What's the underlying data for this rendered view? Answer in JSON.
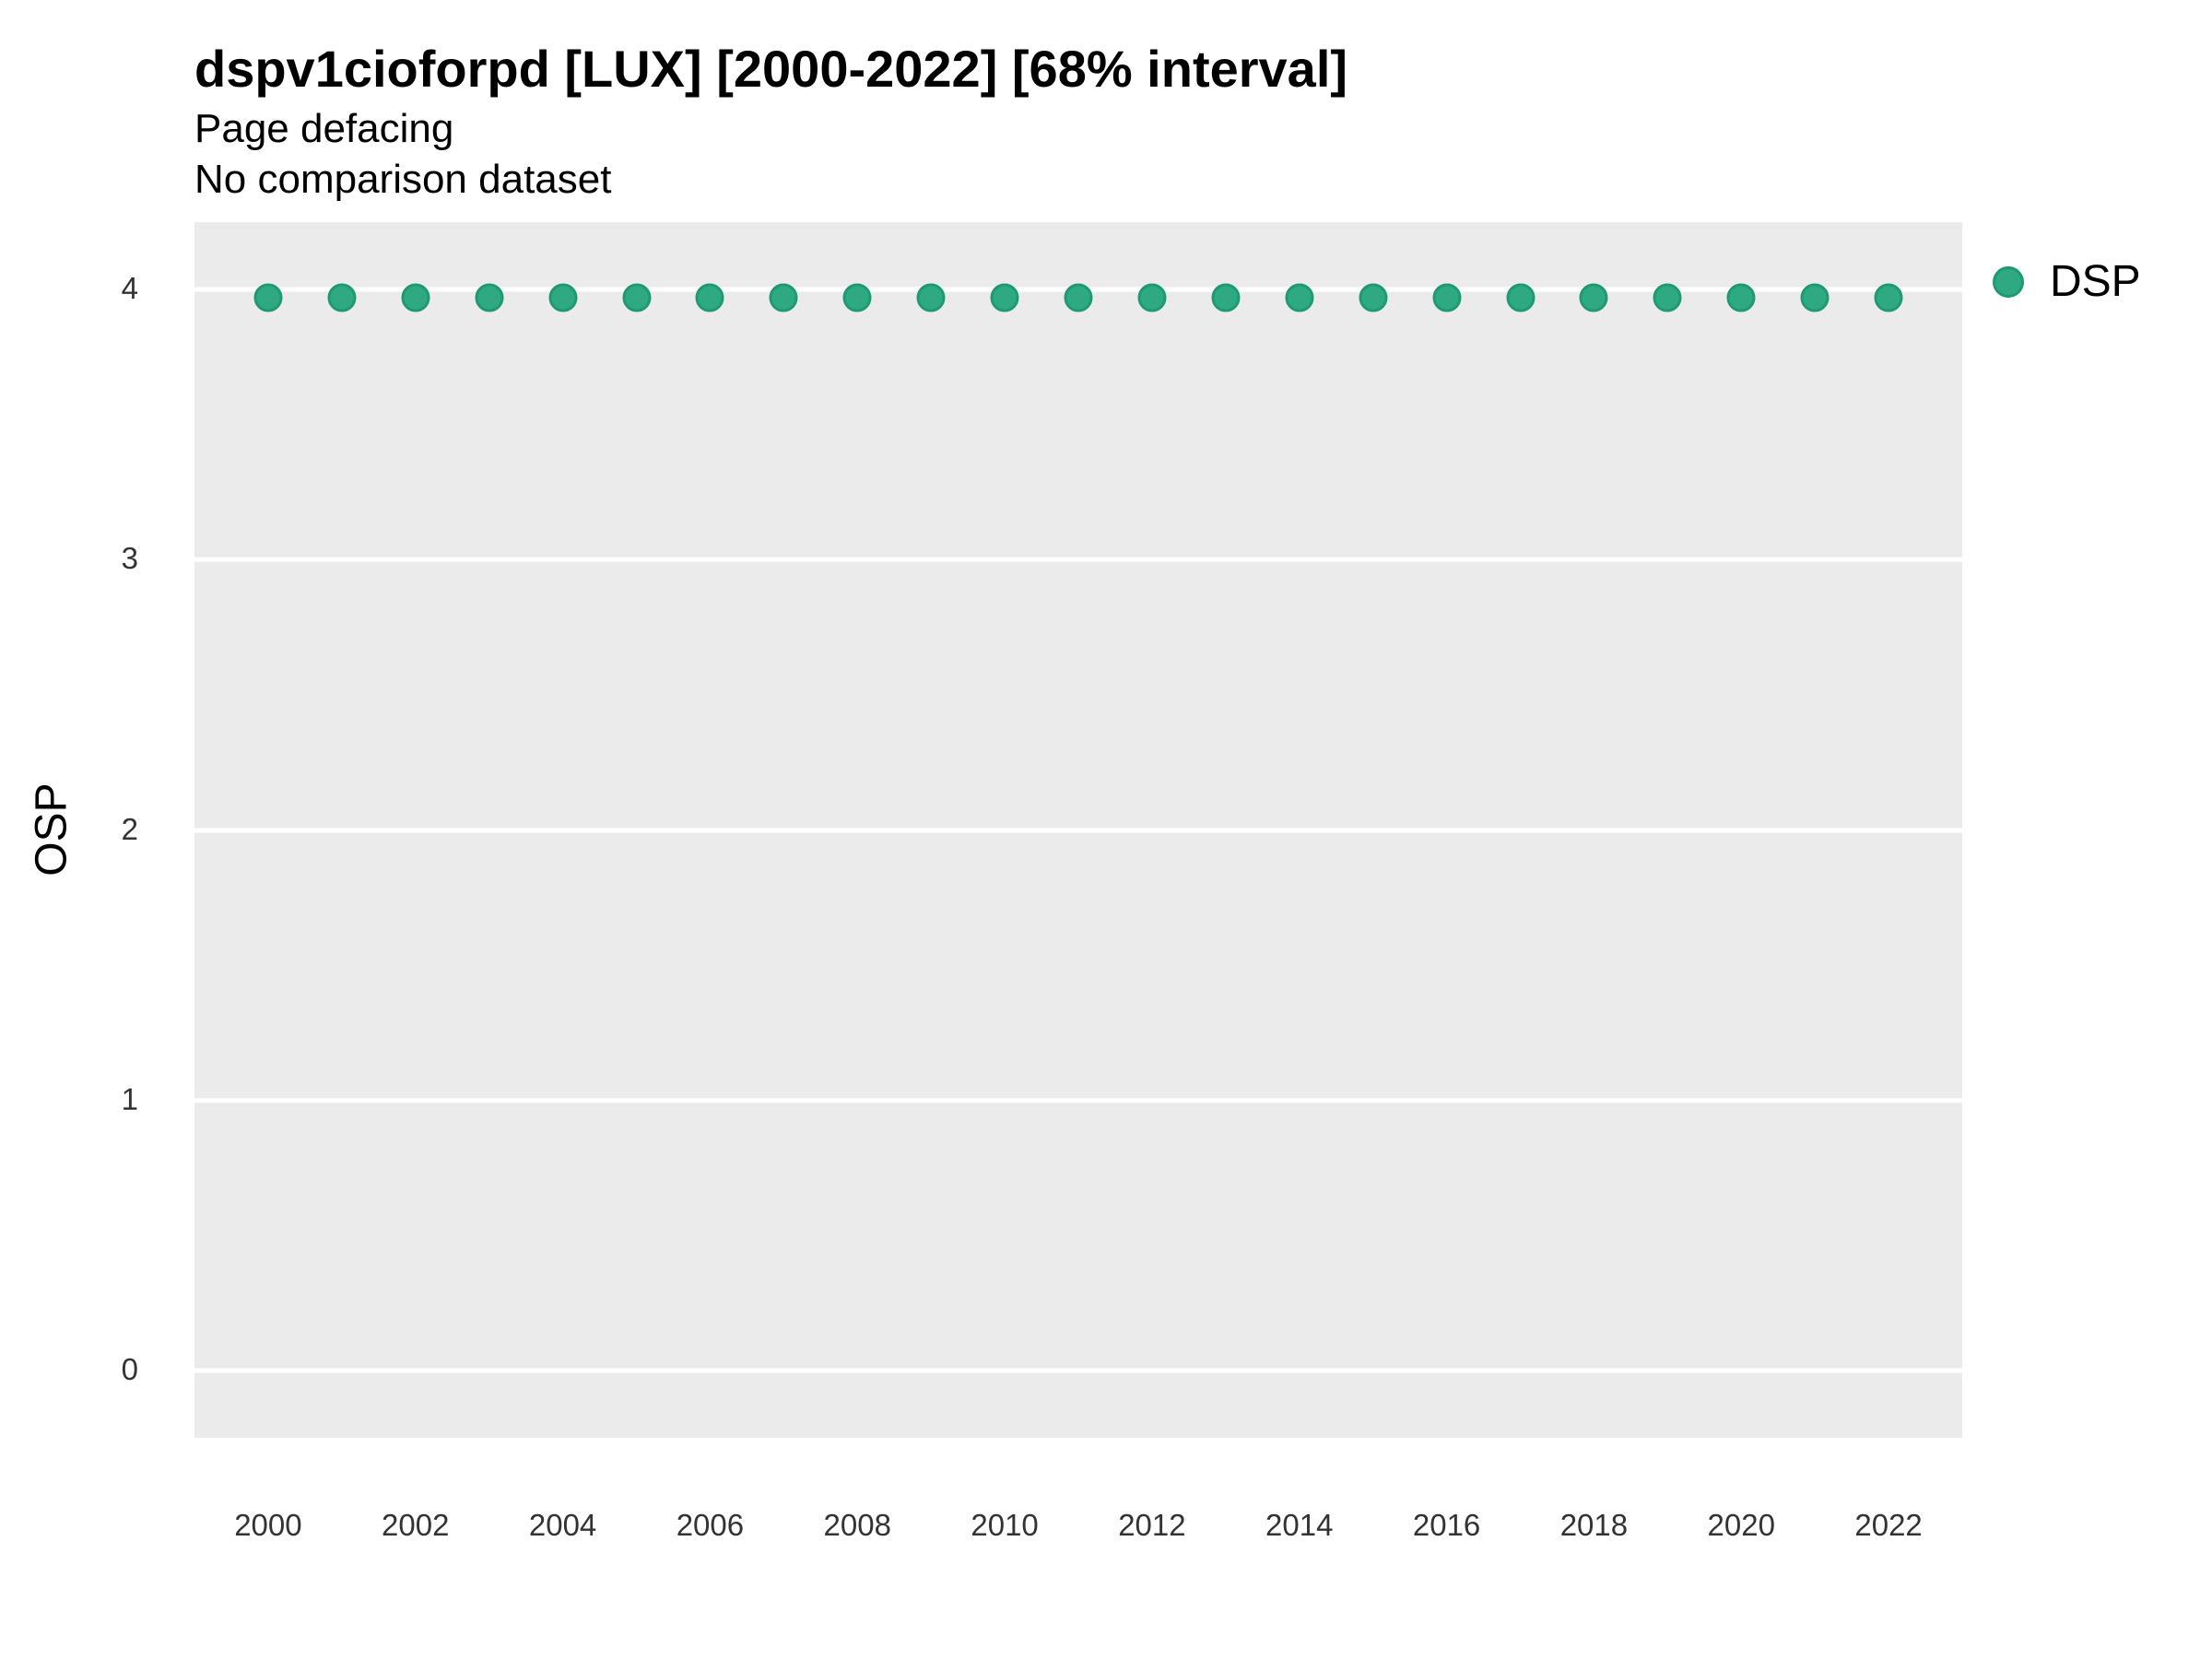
{
  "header": {
    "title": "dspv1cioforpd [LUX] [2000-2022] [68% interval]",
    "subtitle_line1": "Page defacing",
    "subtitle_line2": "No comparison dataset"
  },
  "legend": {
    "position": "right",
    "items": [
      {
        "label": "DSP",
        "color": "#2fa982",
        "border_color": "#1e9a71",
        "marker": "circle"
      }
    ]
  },
  "colors": {
    "panel_background": "#ebebeb",
    "gridline": "#ffffff",
    "tick_text": "#333333",
    "dot_fill": "#2fa982",
    "dot_border": "#1e9a71"
  },
  "chart_data": {
    "type": "scatter",
    "title": "dspv1cioforpd [LUX] [2000-2022] [68% interval]",
    "subtitle": "Page defacing / No comparison dataset",
    "xlabel": "",
    "ylabel": "OSP",
    "xlim": [
      1999,
      2023
    ],
    "ylim": [
      -0.25,
      4.25
    ],
    "x_ticks": [
      2000,
      2002,
      2004,
      2006,
      2008,
      2010,
      2012,
      2014,
      2016,
      2018,
      2020,
      2022
    ],
    "y_ticks": [
      4,
      3,
      2,
      1,
      0
    ],
    "grid": "horizontal-major-only",
    "legend_position": "right",
    "series": [
      {
        "name": "DSP",
        "color": "#2fa982",
        "x": [
          2000,
          2001,
          2002,
          2003,
          2004,
          2005,
          2006,
          2007,
          2008,
          2009,
          2010,
          2011,
          2012,
          2013,
          2014,
          2015,
          2016,
          2017,
          2018,
          2019,
          2020,
          2021,
          2022
        ],
        "y": [
          3.97,
          3.97,
          3.97,
          3.97,
          3.97,
          3.97,
          3.97,
          3.97,
          3.97,
          3.97,
          3.97,
          3.97,
          3.97,
          3.97,
          3.97,
          3.97,
          3.97,
          3.97,
          3.97,
          3.97,
          3.97,
          3.97,
          3.97
        ]
      }
    ]
  }
}
